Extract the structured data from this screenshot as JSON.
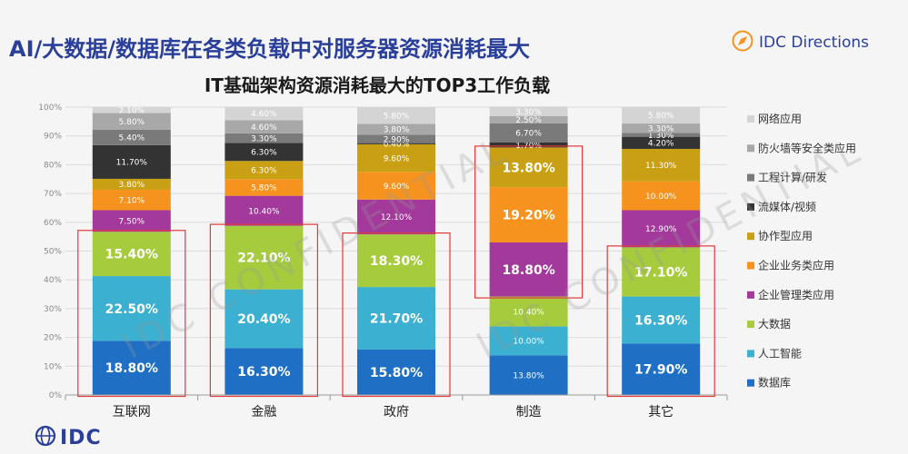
{
  "slide": {
    "title": "AI/大数据/数据库在各类负载中对服务器资源消耗最大",
    "brand": "IDC Directions",
    "logo_text": "IDC",
    "watermark": "IDC CONFIDENTIAL",
    "brand_color": "#2a3f9a"
  },
  "chart_data": {
    "type": "bar",
    "stacked": true,
    "title": "IT基础架构资源消耗最大的TOP3工作负载",
    "categories": [
      "互联网",
      "金融",
      "政府",
      "制造",
      "其它"
    ],
    "ylim": [
      0,
      100
    ],
    "yticks": [
      "0%",
      "10%",
      "20%",
      "30%",
      "40%",
      "50%",
      "60%",
      "70%",
      "80%",
      "90%",
      "100%"
    ],
    "legend_position": "right",
    "series": [
      {
        "name": "数据库",
        "color": "#1f6fc5",
        "values": [
          18.8,
          16.3,
          15.8,
          13.8,
          17.9
        ],
        "labels": [
          "18.80%",
          "16.30%",
          "15.80%",
          "13.80%",
          "17.90%"
        ]
      },
      {
        "name": "人工智能",
        "color": "#3bb0d0",
        "values": [
          22.5,
          20.4,
          21.7,
          10.0,
          16.3
        ],
        "labels": [
          "22.50%",
          "20.40%",
          "21.70%",
          "10.00%",
          "16.30%"
        ]
      },
      {
        "name": "大数据",
        "color": "#a6cc3d",
        "values": [
          15.4,
          22.1,
          18.3,
          10.4,
          17.1
        ],
        "labels": [
          "15.40%",
          "22.10%",
          "18.30%",
          "10.40%",
          "17.10%"
        ]
      },
      {
        "name": "企业管理类应用",
        "color": "#a3399b",
        "values": [
          7.5,
          10.4,
          12.1,
          18.8,
          12.9
        ],
        "labels": [
          "7.50%",
          "10.40%",
          "12.10%",
          "18.80%",
          "12.90%"
        ]
      },
      {
        "name": "企业业务类应用",
        "color": "#f6931e",
        "values": [
          7.1,
          5.8,
          9.6,
          19.2,
          10.0
        ],
        "labels": [
          "7.10%",
          "5.80%",
          "9.60%",
          "19.20%",
          "10.00%"
        ]
      },
      {
        "name": "协作型应用",
        "color": "#c9a013",
        "values": [
          3.8,
          6.3,
          9.6,
          13.8,
          11.3
        ],
        "labels": [
          "3.80%",
          "6.30%",
          "9.60%",
          "13.80%",
          "11.30%"
        ]
      },
      {
        "name": "流媒体/视频",
        "color": "#333333",
        "values": [
          11.7,
          6.3,
          0.4,
          1.7,
          4.2
        ],
        "labels": [
          "11.70%",
          "6.30%",
          "0.40%",
          "1.70%",
          "4.20%"
        ]
      },
      {
        "name": "工程计算/研发",
        "color": "#7a7a7a",
        "values": [
          5.4,
          3.3,
          2.9,
          6.7,
          1.3
        ],
        "labels": [
          "5.40%",
          "3.30%",
          "2.90%",
          "6.70%",
          "1.30%"
        ]
      },
      {
        "name": "防火墙等安全类应用",
        "color": "#a8a8a8",
        "values": [
          5.8,
          4.6,
          3.8,
          2.5,
          3.3
        ],
        "labels": [
          "5.80%",
          "4.60%",
          "3.80%",
          "2.50%",
          "3.30%"
        ]
      },
      {
        "name": "网络应用",
        "color": "#d4d4d4",
        "values": [
          2.1,
          4.6,
          5.8,
          3.3,
          5.8
        ],
        "labels": [
          "2.10%",
          "4.60%",
          "5.80%",
          "3.30%",
          "5.80%"
        ]
      }
    ],
    "highlights": [
      {
        "category": "互联网",
        "series": [
          "数据库",
          "人工智能",
          "大数据"
        ]
      },
      {
        "category": "金融",
        "series": [
          "数据库",
          "人工智能",
          "大数据"
        ]
      },
      {
        "category": "政府",
        "series": [
          "数据库",
          "人工智能",
          "大数据"
        ]
      },
      {
        "category": "制造",
        "series": [
          "企业管理类应用",
          "企业业务类应用",
          "协作型应用"
        ]
      },
      {
        "category": "其它",
        "series": [
          "数据库",
          "人工智能",
          "大数据"
        ]
      }
    ],
    "highlight_color": "#e03a3a"
  }
}
